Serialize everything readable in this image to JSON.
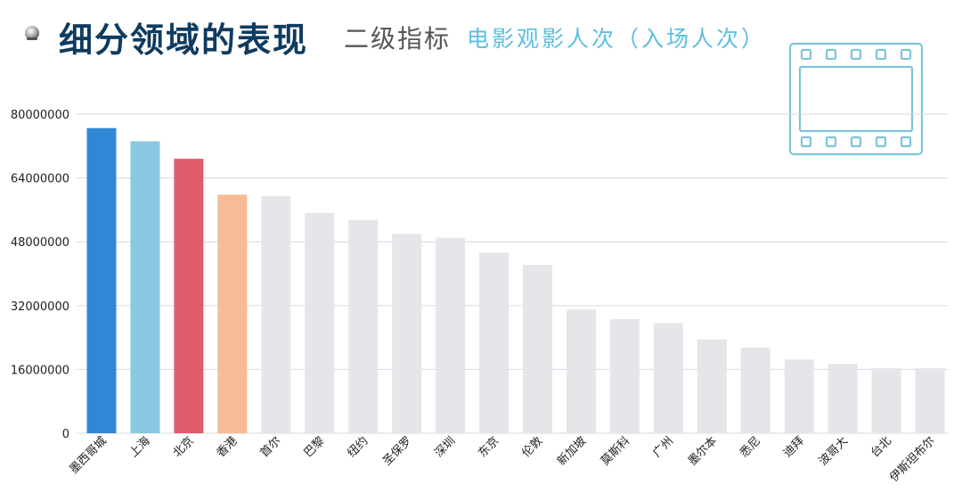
{
  "header": {
    "title": "细分领域的表现",
    "subtitle_level": "二级指标",
    "subtitle_metric": "电影观影人次（入场人次）"
  },
  "icons": {
    "bullet": "globe-bullet-icon",
    "decoration": "film-strip-icon"
  },
  "colors": {
    "title": "#0f3b5f",
    "accent": "#5bbfe0",
    "film_icon": "#7dc6d9",
    "bar_default": "#e7e5ea",
    "highlight": [
      "#2f87d6",
      "#89c8e2",
      "#e15c6a",
      "#f6bb97"
    ],
    "grid": "#d8d8e0"
  },
  "chart_data": {
    "type": "bar",
    "title": "",
    "xlabel": "",
    "ylabel": "",
    "ylim": [
      0,
      80000000
    ],
    "yticks": [
      0,
      16000000,
      32000000,
      48000000,
      64000000,
      80000000
    ],
    "ytick_labels": [
      "0",
      "16000000",
      "32000000",
      "48000000",
      "64000000",
      "80000000"
    ],
    "grid": true,
    "categories": [
      "墨西哥城",
      "上海",
      "北京",
      "香港",
      "首尔",
      "巴黎",
      "纽约",
      "圣保罗",
      "深圳",
      "东京",
      "伦敦",
      "新加坡",
      "莫斯科",
      "广州",
      "墨尔本",
      "悉尼",
      "迪拜",
      "波哥大",
      "台北",
      "伊斯坦布尔"
    ],
    "values": [
      76500000,
      73200000,
      68800000,
      59800000,
      59500000,
      55200000,
      53500000,
      50000000,
      49000000,
      45300000,
      42200000,
      31000000,
      28600000,
      27600000,
      23500000,
      21500000,
      18500000,
      17400000,
      16300000,
      16300000
    ]
  }
}
